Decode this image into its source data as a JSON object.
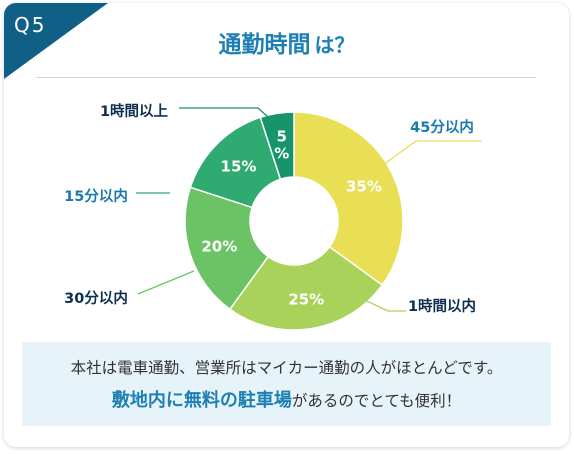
{
  "badge": "Q5",
  "heading": {
    "main": "通勤時間",
    "sub": "は？"
  },
  "chart_data": {
    "type": "pie",
    "style": "donut",
    "start_angle": "12 o'clock",
    "direction": "clockwise",
    "categories": [
      "45分以内",
      "1時間以内",
      "30分以内",
      "15分以内",
      "1時間以上"
    ],
    "values": [
      35,
      25,
      20,
      15,
      5
    ],
    "value_labels": [
      "35%",
      "25%",
      "20%",
      "15%",
      "5\n%"
    ],
    "colors": [
      "#e8df55",
      "#a8d25a",
      "#6cc365",
      "#2faa70",
      "#17946c"
    ],
    "label_colors": [
      "#1a7aab",
      "#0e2f50",
      "#0e2f50",
      "#1a7aab",
      "#0e2f50"
    ]
  },
  "note": {
    "line1": "本社は電車通勤、営業所はマイカー通勤の人がほとんどです。",
    "line2_highlight": "敷地内に無料の駐車場",
    "line2_rest": "があるのでとても便利！"
  }
}
